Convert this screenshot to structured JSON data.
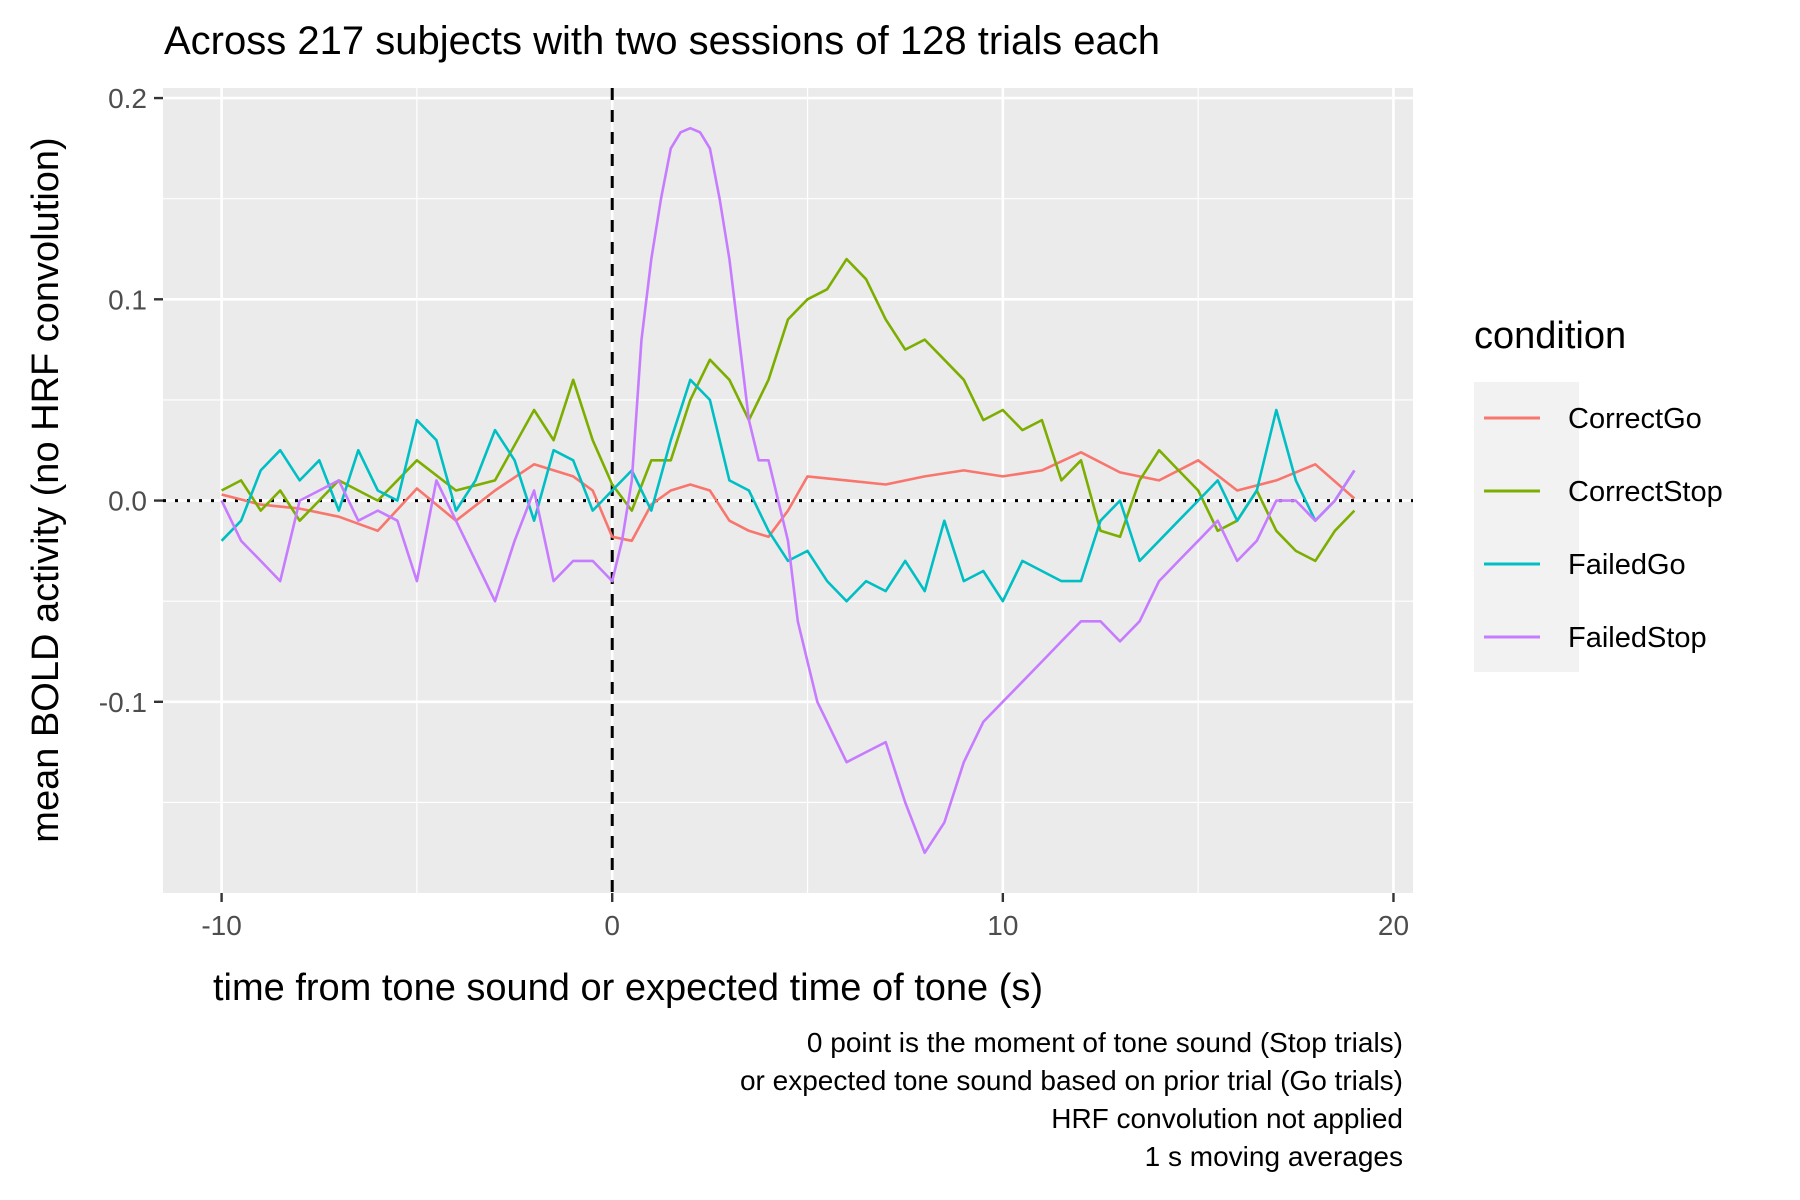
{
  "chart_data": {
    "type": "line",
    "title": "Across 217 subjects with two sessions of 128 trials each",
    "xlabel": "time from tone sound or expected time of tone (s)",
    "ylabel": "mean BOLD activity (no HRF convolution)",
    "xlim": [
      -11.5,
      20.5
    ],
    "ylim": [
      -0.195,
      0.205
    ],
    "x_ticks": [
      -10,
      0,
      10,
      20
    ],
    "x_tick_labels": [
      "-10",
      "0",
      "10",
      "20"
    ],
    "y_ticks": [
      -0.1,
      0.0,
      0.1,
      0.2
    ],
    "y_tick_labels": [
      "-0.1",
      "0.0",
      "0.1",
      "0.2"
    ],
    "grid": true,
    "legend_title": "condition",
    "legend_position": "right",
    "reference_lines": [
      {
        "orientation": "vertical",
        "value": 0,
        "style": "dashed"
      },
      {
        "orientation": "horizontal",
        "value": 0,
        "style": "dotted"
      }
    ],
    "caption": [
      "0 point is the moment of tone sound (Stop trials)",
      "or expected tone sound based on prior trial (Go trials)",
      "HRF convolution not applied",
      "1 s moving averages"
    ],
    "series": [
      {
        "name": "CorrectGo",
        "color": "#F8766D",
        "x": [
          -10,
          -9,
          -8,
          -7,
          -6,
          -5,
          -4,
          -3,
          -2,
          -1,
          -0.5,
          0,
          0.5,
          1,
          1.5,
          2,
          2.5,
          3,
          3.5,
          4,
          4.5,
          5,
          6,
          7,
          8,
          9,
          10,
          11,
          12,
          13,
          14,
          15,
          16,
          17,
          18,
          19
        ],
        "y": [
          0.003,
          -0.002,
          -0.004,
          -0.008,
          -0.015,
          0.006,
          -0.01,
          0.005,
          0.018,
          0.012,
          0.005,
          -0.018,
          -0.02,
          -0.002,
          0.005,
          0.008,
          0.005,
          -0.01,
          -0.015,
          -0.018,
          -0.005,
          0.012,
          0.01,
          0.008,
          0.012,
          0.015,
          0.012,
          0.015,
          0.024,
          0.014,
          0.01,
          0.02,
          0.005,
          0.01,
          0.018,
          0.001
        ]
      },
      {
        "name": "CorrectStop",
        "color": "#7CAE00",
        "x": [
          -10,
          -9.5,
          -9,
          -8.5,
          -8,
          -7,
          -6,
          -5,
          -4,
          -3,
          -2,
          -1.5,
          -1,
          -0.5,
          0,
          0.5,
          1,
          1.5,
          2,
          2.5,
          3,
          3.5,
          4,
          4.5,
          5,
          5.5,
          6,
          6.5,
          7,
          7.5,
          8,
          8.5,
          9,
          9.5,
          10,
          10.5,
          11,
          11.5,
          12,
          12.5,
          13,
          13.5,
          14,
          14.5,
          15,
          15.5,
          16,
          16.5,
          17,
          17.5,
          18,
          18.5,
          19
        ],
        "y": [
          0.005,
          0.01,
          -0.005,
          0.005,
          -0.01,
          0.01,
          0.0,
          0.02,
          0.005,
          0.01,
          0.045,
          0.03,
          0.06,
          0.03,
          0.008,
          -0.005,
          0.02,
          0.02,
          0.05,
          0.07,
          0.06,
          0.04,
          0.06,
          0.09,
          0.1,
          0.105,
          0.12,
          0.11,
          0.09,
          0.075,
          0.08,
          0.07,
          0.06,
          0.04,
          0.045,
          0.035,
          0.04,
          0.01,
          0.02,
          -0.015,
          -0.018,
          0.01,
          0.025,
          0.015,
          0.005,
          -0.015,
          -0.01,
          0.005,
          -0.015,
          -0.025,
          -0.03,
          -0.015,
          -0.005
        ]
      },
      {
        "name": "FailedGo",
        "color": "#00BFC4",
        "x": [
          -10,
          -9.5,
          -9,
          -8.5,
          -8,
          -7.5,
          -7,
          -6.5,
          -6,
          -5.5,
          -5,
          -4.5,
          -4,
          -3.5,
          -3,
          -2.5,
          -2,
          -1.5,
          -1,
          -0.5,
          0,
          0.5,
          1,
          1.5,
          2,
          2.5,
          3,
          3.5,
          4,
          4.5,
          5,
          5.5,
          6,
          6.5,
          7,
          7.5,
          8,
          8.5,
          9,
          9.5,
          10,
          10.5,
          11,
          11.5,
          12,
          12.5,
          13,
          13.5,
          14,
          14.5,
          15,
          15.5,
          16,
          16.5,
          17,
          17.5,
          18,
          18.5,
          19
        ],
        "y": [
          -0.02,
          -0.01,
          0.015,
          0.025,
          0.01,
          0.02,
          -0.005,
          0.025,
          0.005,
          0.0,
          0.04,
          0.03,
          -0.005,
          0.01,
          0.035,
          0.02,
          -0.01,
          0.025,
          0.02,
          -0.005,
          0.005,
          0.015,
          -0.005,
          0.03,
          0.06,
          0.05,
          0.01,
          0.005,
          -0.015,
          -0.03,
          -0.025,
          -0.04,
          -0.05,
          -0.04,
          -0.045,
          -0.03,
          -0.045,
          -0.01,
          -0.04,
          -0.035,
          -0.05,
          -0.03,
          -0.035,
          -0.04,
          -0.04,
          -0.01,
          0.0,
          -0.03,
          -0.02,
          -0.01,
          0.0,
          0.01,
          -0.01,
          0.005,
          0.045,
          0.01,
          -0.01,
          0.0,
          0.015
        ]
      },
      {
        "name": "FailedStop",
        "color": "#C77CFF",
        "x": [
          -10,
          -9.5,
          -9,
          -8.5,
          -8,
          -7.5,
          -7,
          -6.5,
          -6,
          -5.5,
          -5,
          -4.5,
          -4,
          -3.5,
          -3,
          -2.5,
          -2,
          -1.5,
          -1,
          -0.5,
          0,
          0.25,
          0.5,
          0.75,
          1,
          1.25,
          1.5,
          1.75,
          2,
          2.25,
          2.5,
          2.75,
          3,
          3.25,
          3.5,
          3.75,
          4,
          4.25,
          4.5,
          4.75,
          5,
          5.25,
          5.5,
          5.75,
          6,
          6.5,
          7,
          7.5,
          8,
          8.5,
          9,
          9.5,
          10,
          10.5,
          11,
          11.5,
          12,
          12.5,
          13,
          13.5,
          14,
          14.5,
          15,
          15.5,
          16,
          16.5,
          17,
          17.5,
          18,
          18.5,
          19
        ],
        "y": [
          0.0,
          -0.02,
          -0.03,
          -0.04,
          0.0,
          0.005,
          0.01,
          -0.01,
          -0.005,
          -0.01,
          -0.04,
          0.01,
          -0.01,
          -0.03,
          -0.05,
          -0.02,
          0.005,
          -0.04,
          -0.03,
          -0.03,
          -0.04,
          -0.02,
          0.01,
          0.08,
          0.12,
          0.15,
          0.175,
          0.183,
          0.185,
          0.183,
          0.175,
          0.15,
          0.12,
          0.08,
          0.04,
          0.02,
          0.02,
          0.0,
          -0.02,
          -0.06,
          -0.08,
          -0.1,
          -0.11,
          -0.12,
          -0.13,
          -0.125,
          -0.12,
          -0.15,
          -0.175,
          -0.16,
          -0.13,
          -0.11,
          -0.1,
          -0.09,
          -0.08,
          -0.07,
          -0.06,
          -0.06,
          -0.07,
          -0.06,
          -0.04,
          -0.03,
          -0.02,
          -0.01,
          -0.03,
          -0.02,
          0.0,
          0.0,
          -0.01,
          0.0,
          0.015
        ]
      }
    ]
  }
}
